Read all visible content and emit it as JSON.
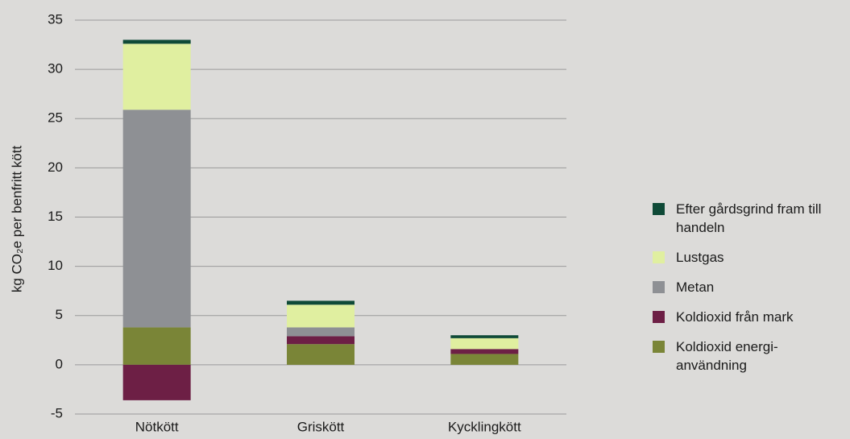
{
  "chart_data": {
    "type": "stacked_bar",
    "y_label": "kg CO₂e per benfritt kött",
    "categories": [
      "Nötkött",
      "Griskött",
      "Kycklingkött"
    ],
    "series": [
      {
        "name": "Koldioxid energi-användning",
        "color": "#7a8537",
        "values": [
          3.8,
          2.1,
          1.1
        ]
      },
      {
        "name": "Koldioxid från mark",
        "color": "#6d1f45",
        "values": [
          -3.6,
          0.8,
          0.5
        ]
      },
      {
        "name": "Metan",
        "color": "#8e9094",
        "values": [
          22.1,
          0.9,
          0
        ]
      },
      {
        "name": "Lustgas",
        "color": "#e0efa0",
        "values": [
          6.7,
          2.3,
          1.1
        ]
      },
      {
        "name": "Efter gårdsgrind fram till handeln",
        "color": "#0f4a37",
        "values": [
          0.4,
          0.4,
          0.3
        ]
      }
    ],
    "ylim": [
      -5,
      35
    ],
    "yticks": [
      -5,
      0,
      5,
      10,
      15,
      20,
      25,
      30,
      35
    ],
    "grid": true,
    "legend": "right"
  }
}
